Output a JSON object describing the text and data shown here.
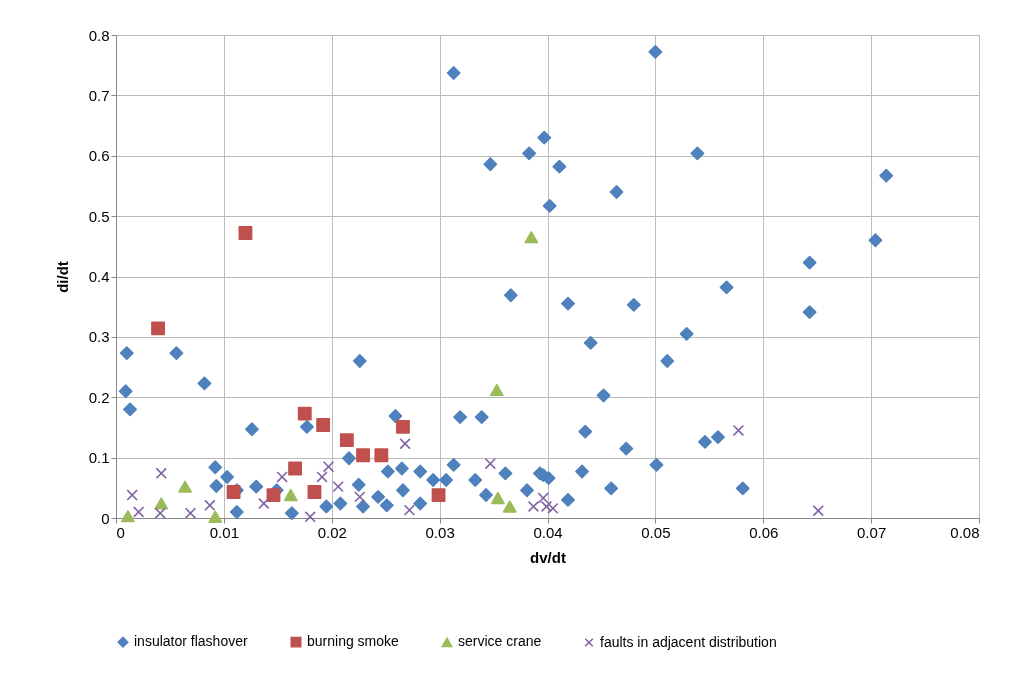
{
  "chart_data": {
    "type": "scatter",
    "xlabel": "dv/dt",
    "ylabel": "di/dt",
    "xlim": [
      0,
      0.08
    ],
    "ylim": [
      0,
      0.8
    ],
    "xticks": [
      0,
      0.01,
      0.02,
      0.03,
      0.04,
      0.05,
      0.06,
      0.07,
      0.08
    ],
    "yticks": [
      0,
      0.1,
      0.2,
      0.3,
      0.4,
      0.5,
      0.6,
      0.7,
      0.8
    ],
    "grid": true,
    "legend": "bottom",
    "series": [
      {
        "name": "insulator flashover",
        "color": "#4f81bd",
        "marker": "diamond",
        "x": [
          0.05,
          0.0313,
          0.0397,
          0.0383,
          0.0347,
          0.0411,
          0.0539,
          0.0464,
          0.0714,
          0.0402,
          0.0704,
          0.0643,
          0.0643,
          0.0566,
          0.0366,
          0.0419,
          0.048,
          0.044,
          0.0529,
          0.0511,
          0.001,
          0.0056,
          0.0082,
          0.0009,
          0.0226,
          0.0013,
          0.0126,
          0.0177,
          0.0092,
          0.0103,
          0.0093,
          0.0112,
          0.013,
          0.0112,
          0.0163,
          0.0149,
          0.0259,
          0.0319,
          0.0339,
          0.0216,
          0.0265,
          0.0282,
          0.0313,
          0.0361,
          0.0393,
          0.0333,
          0.0252,
          0.0225,
          0.0306,
          0.0343,
          0.0381,
          0.0243,
          0.0208,
          0.0229,
          0.0251,
          0.0282,
          0.0195,
          0.0266,
          0.0294,
          0.0452,
          0.0435,
          0.0473,
          0.0501,
          0.0432,
          0.0459,
          0.0419,
          0.0396,
          0.0401,
          0.0546,
          0.0558,
          0.0581
        ],
        "values": [
          0.772,
          0.737,
          0.63,
          0.604,
          0.586,
          0.582,
          0.604,
          0.54,
          0.567,
          0.517,
          0.46,
          0.423,
          0.341,
          0.382,
          0.369,
          0.355,
          0.353,
          0.29,
          0.305,
          0.26,
          0.273,
          0.273,
          0.223,
          0.21,
          0.26,
          0.18,
          0.147,
          0.151,
          0.084,
          0.068,
          0.053,
          0.046,
          0.052,
          0.01,
          0.008,
          0.046,
          0.169,
          0.167,
          0.167,
          0.099,
          0.082,
          0.077,
          0.088,
          0.074,
          0.074,
          0.063,
          0.077,
          0.055,
          0.063,
          0.038,
          0.046,
          0.035,
          0.024,
          0.019,
          0.021,
          0.024,
          0.019,
          0.046,
          0.063,
          0.203,
          0.143,
          0.115,
          0.088,
          0.077,
          0.049,
          0.03,
          0.071,
          0.066,
          0.126,
          0.134,
          0.049
        ]
      },
      {
        "name": "burning smoke",
        "color": "#c0504d",
        "marker": "square",
        "x": [
          0.012,
          0.0039,
          0.0175,
          0.0192,
          0.0166,
          0.0109,
          0.0146,
          0.0184,
          0.0214,
          0.0229,
          0.0246,
          0.0266,
          0.0299
        ],
        "values": [
          0.472,
          0.314,
          0.173,
          0.154,
          0.082,
          0.043,
          0.038,
          0.043,
          0.129,
          0.104,
          0.104,
          0.151,
          0.038
        ]
      },
      {
        "name": "service crane",
        "color": "#9bbb59",
        "marker": "triangle",
        "x": [
          0.0385,
          0.0353,
          0.0064,
          0.0011,
          0.0042,
          0.0092,
          0.0162,
          0.0354,
          0.0365
        ],
        "values": [
          0.465,
          0.212,
          0.052,
          0.003,
          0.024,
          0.002,
          0.038,
          0.033,
          0.019
        ]
      },
      {
        "name": "faults in adjacent distribution",
        "color": "#8064a2",
        "marker": "cross",
        "x": [
          0.0042,
          0.0015,
          0.0021,
          0.0041,
          0.0069,
          0.0087,
          0.0154,
          0.018,
          0.0137,
          0.0268,
          0.0347,
          0.0197,
          0.0206,
          0.0226,
          0.0272,
          0.0387,
          0.0399,
          0.0191,
          0.0577,
          0.0396,
          0.0405,
          0.0651
        ],
        "values": [
          0.074,
          0.038,
          0.01,
          0.008,
          0.008,
          0.021,
          0.068,
          0.002,
          0.024,
          0.123,
          0.09,
          0.085,
          0.052,
          0.035,
          0.013,
          0.019,
          0.019,
          0.068,
          0.145,
          0.033,
          0.016,
          0.012
        ]
      }
    ]
  }
}
